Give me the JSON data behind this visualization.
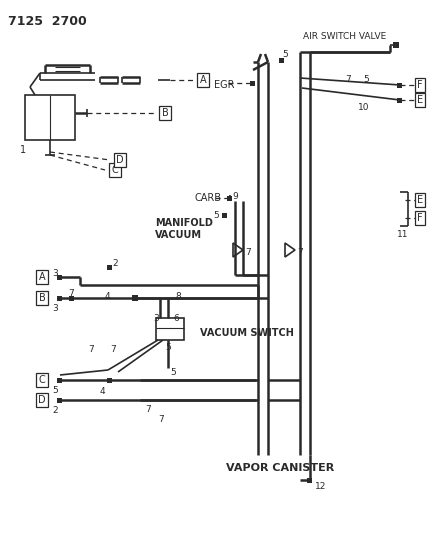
{
  "bg_color": "#ffffff",
  "line_color": "#2a2a2a",
  "text_color": "#2a2a2a",
  "title": "7125  2700",
  "labels": {
    "air_switch_valve": "AIR SWITCH VALVE",
    "egr": "EGR",
    "carb": "CARB",
    "manifold_vacuum": "MANIFOLD\nVACUUM",
    "vacuum_switch": "VACUUM SWITCH",
    "vapor_canister": "VAPOR CANISTER"
  }
}
